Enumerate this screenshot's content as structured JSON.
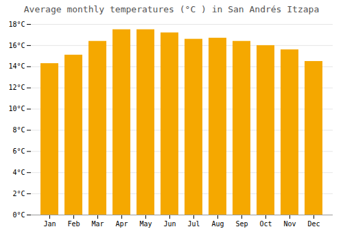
{
  "chart_data": {
    "type": "bar",
    "title": "Average monthly temperatures (°C ) in San Andrés Itzapa",
    "categories": [
      "Jan",
      "Feb",
      "Mar",
      "Apr",
      "May",
      "Jun",
      "Jul",
      "Aug",
      "Sep",
      "Oct",
      "Nov",
      "Dec"
    ],
    "values": [
      14.3,
      15.1,
      16.4,
      17.5,
      17.5,
      17.2,
      16.6,
      16.7,
      16.4,
      16.0,
      15.6,
      14.5
    ],
    "color": "#F5A800",
    "ylim": [
      0,
      18
    ],
    "yticks": [
      {
        "value": 0,
        "label": "0°C"
      },
      {
        "value": 2,
        "label": "2°C"
      },
      {
        "value": 4,
        "label": "4°C"
      },
      {
        "value": 6,
        "label": "6°C"
      },
      {
        "value": 8,
        "label": "8°C"
      },
      {
        "value": 10,
        "label": "10°C"
      },
      {
        "value": 12,
        "label": "12°C"
      },
      {
        "value": 14,
        "label": "14°C"
      },
      {
        "value": 16,
        "label": "16°C"
      },
      {
        "value": 18,
        "label": "18°C"
      }
    ],
    "grid": true
  }
}
